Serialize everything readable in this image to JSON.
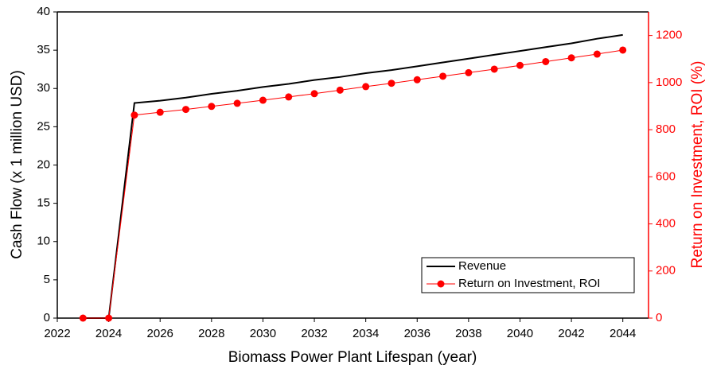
{
  "chart_data": {
    "type": "line",
    "x_label": "Biomass Power Plant Lifespan (year)",
    "y_label": "Cash Flow (x 1 million USD)",
    "y2_label": "Return on Investment, ROI (%)",
    "x": [
      2023,
      2024,
      2025,
      2026,
      2027,
      2028,
      2029,
      2030,
      2031,
      2032,
      2033,
      2034,
      2035,
      2036,
      2037,
      2038,
      2039,
      2040,
      2041,
      2042,
      2043,
      2044
    ],
    "series": [
      {
        "name": "Revenue",
        "color": "#000000",
        "marker": false,
        "values": [
          0,
          0,
          28.1,
          28.4,
          28.8,
          29.3,
          29.7,
          30.2,
          30.6,
          31.1,
          31.5,
          32.0,
          32.4,
          32.9,
          33.4,
          33.9,
          34.4,
          34.9,
          35.4,
          35.9,
          36.5,
          37.0
        ]
      },
      {
        "name": "Return on Investment, ROI",
        "color": "#ff0000",
        "marker": true,
        "axis": "y2",
        "values": [
          0,
          0,
          862,
          874,
          886,
          899,
          912,
          925,
          939,
          953,
          968,
          983,
          997,
          1012,
          1027,
          1042,
          1057,
          1073,
          1089,
          1105,
          1121,
          1138
        ]
      }
    ],
    "xlim": [
      2022,
      2045
    ],
    "xticks": [
      2022,
      2024,
      2026,
      2028,
      2030,
      2032,
      2034,
      2036,
      2038,
      2040,
      2042,
      2044
    ],
    "ylim": [
      0,
      40
    ],
    "yticks": [
      0,
      5,
      10,
      15,
      20,
      25,
      30,
      35,
      40
    ],
    "y2lim": [
      0,
      1300
    ],
    "y2ticks": [
      0,
      200,
      400,
      600,
      800,
      1000,
      1200
    ],
    "y2_color": "#ff0000",
    "legend": "lower right"
  }
}
